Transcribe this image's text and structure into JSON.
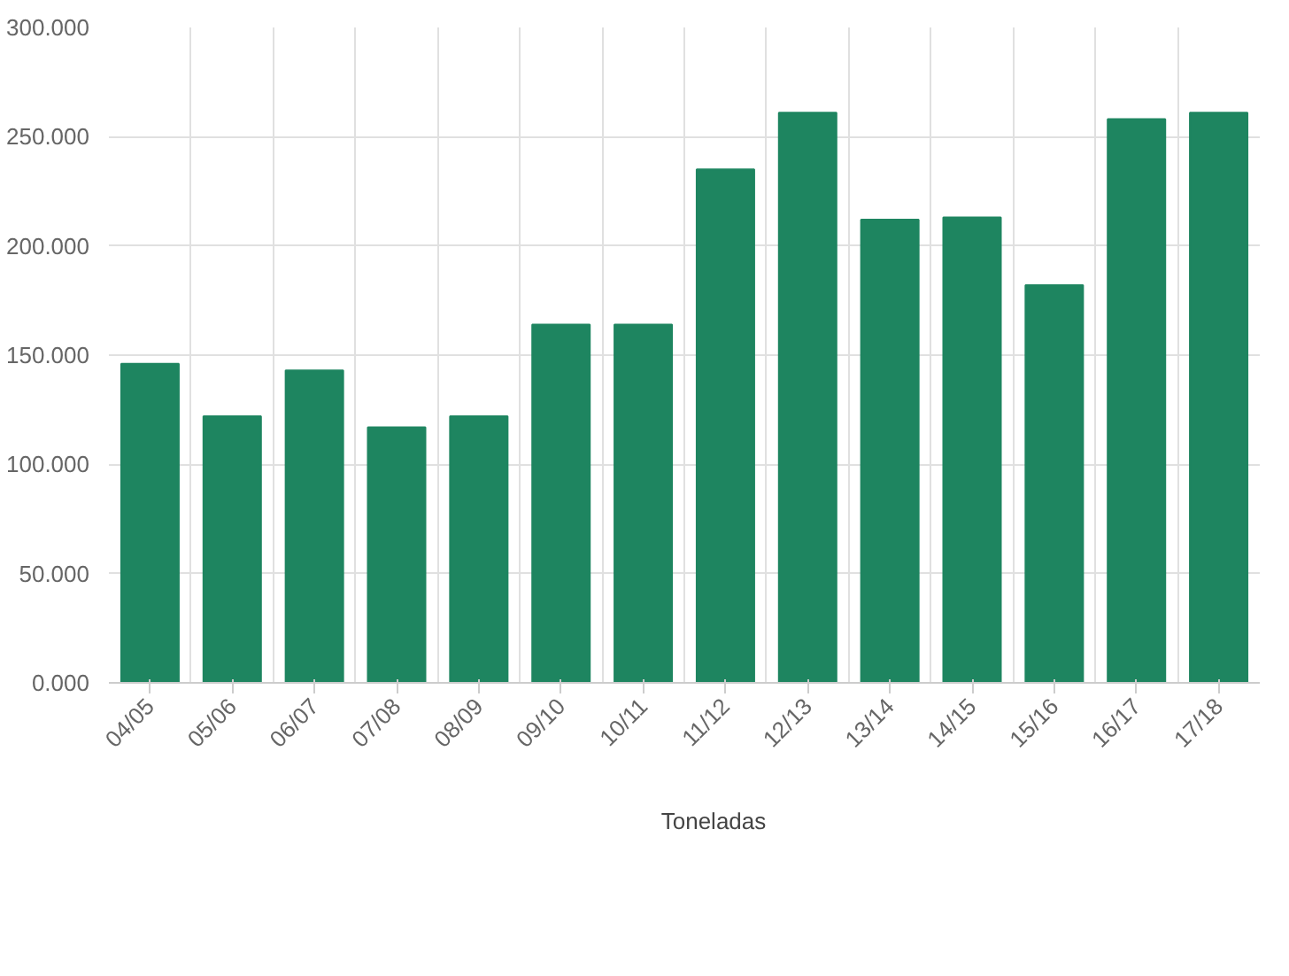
{
  "chart_data": {
    "type": "bar",
    "categories": [
      "04/05",
      "05/06",
      "06/07",
      "07/08",
      "08/09",
      "09/10",
      "10/11",
      "11/12",
      "12/13",
      "13/14",
      "14/15",
      "15/16",
      "16/17",
      "17/18"
    ],
    "series": [
      {
        "name": "Toneladas",
        "color": "#1e8560",
        "values": [
          146,
          122,
          143,
          117,
          122,
          164,
          164,
          235,
          261,
          212,
          213,
          182,
          258,
          261
        ]
      }
    ],
    "ylim": [
      0,
      300
    ],
    "yticks": [
      {
        "value": 0,
        "label": "0.000"
      },
      {
        "value": 50,
        "label": "50.000"
      },
      {
        "value": 100,
        "label": "100.000"
      },
      {
        "value": 150,
        "label": "150.000"
      },
      {
        "value": 200,
        "label": "200.000"
      },
      {
        "value": 250,
        "label": "250.000"
      },
      {
        "value": 300,
        "label": "300.000"
      }
    ],
    "grid": true,
    "legend": "bottom"
  }
}
